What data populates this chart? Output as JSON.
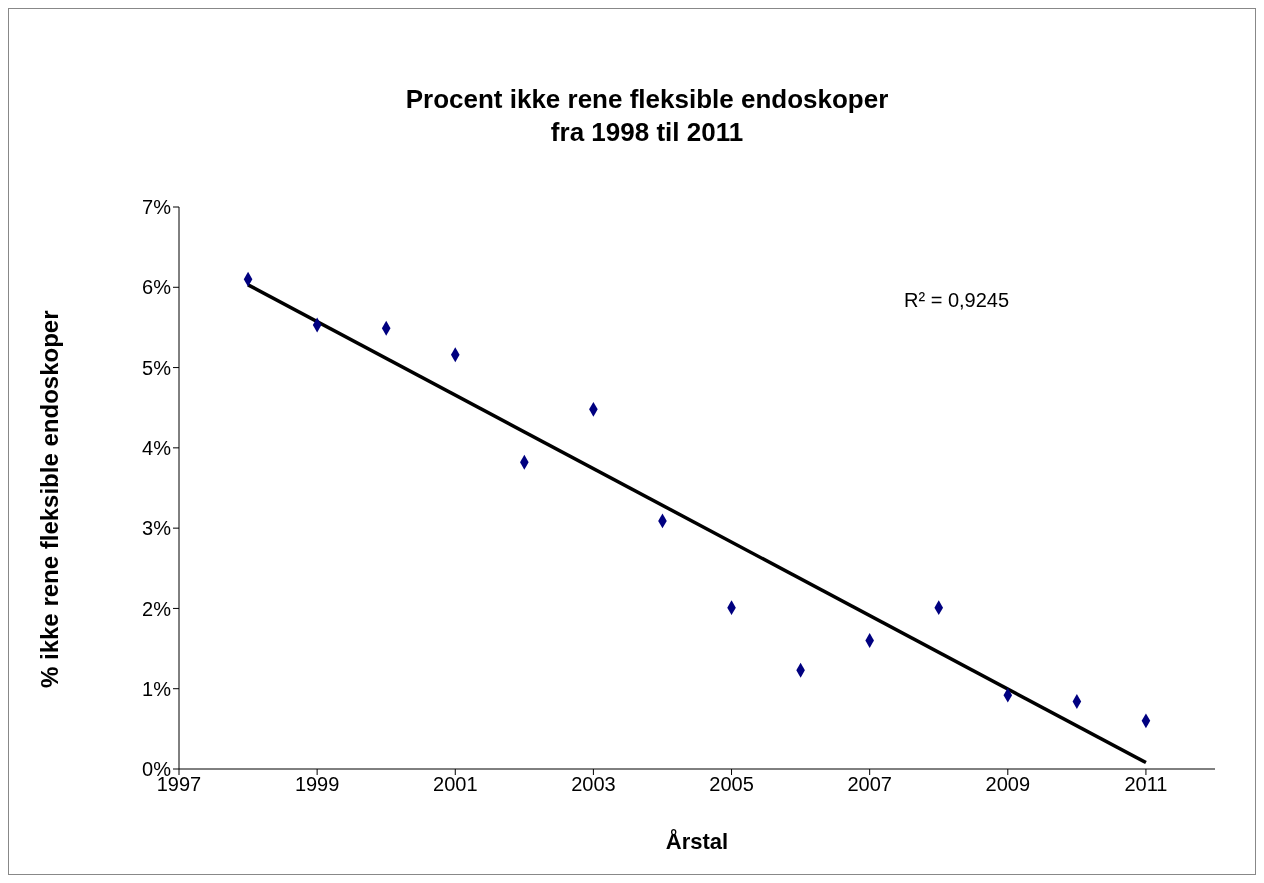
{
  "chart_data": {
    "type": "scatter",
    "title": "Procent ikke rene fleksible endoskoper\nfra 1998 til 2011",
    "xlabel": "Årstal",
    "ylabel": "% ikke rene fleksible endoskoper",
    "x": [
      1998,
      1999,
      2000,
      2001,
      2002,
      2003,
      2004,
      2005,
      2006,
      2007,
      2008,
      2009,
      2010,
      2011
    ],
    "series": [
      {
        "color": "#000080",
        "marker": "diamond",
        "values": [
          6.1,
          5.53,
          5.49,
          5.16,
          3.82,
          4.48,
          3.09,
          2.01,
          1.23,
          1.6,
          2.01,
          0.92,
          0.84,
          0.6
        ]
      },
      {
        "type": "line",
        "color": "#000000",
        "marker": "none",
        "line_style": "solid",
        "x": [
          1998,
          2011
        ],
        "values": [
          6.03,
          0.08
        ]
      }
    ],
    "xlim": [
      1997,
      2012
    ],
    "xticks": [
      1997,
      1999,
      2001,
      2003,
      2005,
      2007,
      2009,
      2011
    ],
    "ylim": [
      0,
      7
    ],
    "yticks": [
      {
        "value": 0,
        "label": "0%"
      },
      {
        "value": 1,
        "label": "1%"
      },
      {
        "value": 2,
        "label": "2%"
      },
      {
        "value": 3,
        "label": "3%"
      },
      {
        "value": 4,
        "label": "4%"
      },
      {
        "value": 5,
        "label": "5%"
      },
      {
        "value": 6,
        "label": "6%"
      },
      {
        "value": 7,
        "label": "7%"
      }
    ],
    "annotations": [
      "R² = 0,9245"
    ],
    "grid": false,
    "legend": false
  }
}
